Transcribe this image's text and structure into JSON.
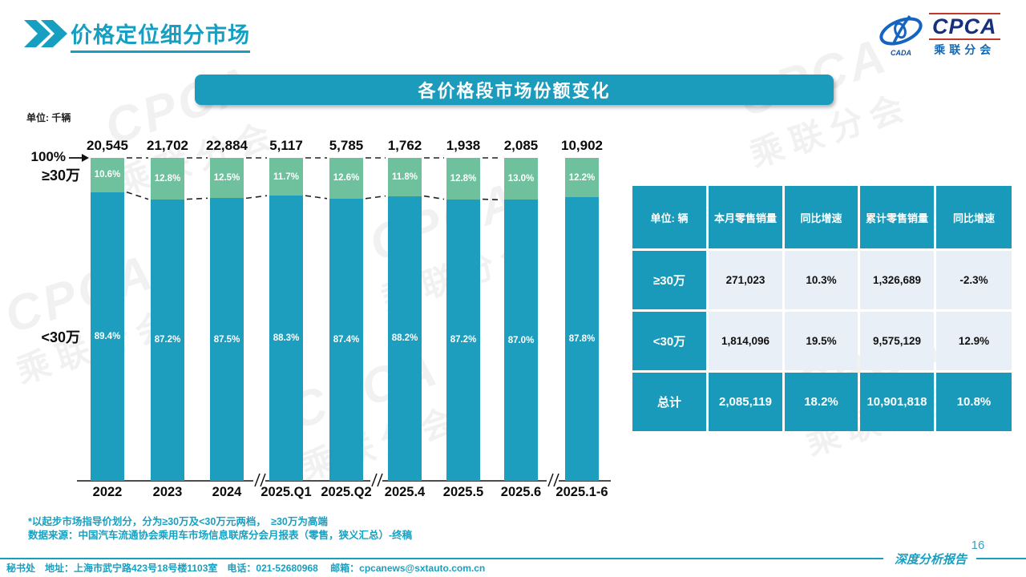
{
  "page": {
    "title": "价格定位细分市场",
    "page_number": "16",
    "report_label": "深度分析报告",
    "footer_contact": "秘书处　地址：上海市武宁路423号18号楼1103室　电话：021-52680968　 邮箱：cpcanews@sxtauto.com.cn",
    "note_line1": "*以起步市场指导价划分，分为≥30万及<30万元两档，　≥30万为高端",
    "note_line2": "数据来源：中国汽车流通协会乘用车市场信息联席分会月报表（零售，狭义汇总）-终稿"
  },
  "logo": {
    "text": "CPCA",
    "subtext": "乘联分会",
    "emblem_caption": "CADA"
  },
  "chart_banner": "各价格段市场份额变化",
  "chart_data": {
    "type": "bar",
    "stacked": true,
    "title": "各价格段市场份额变化",
    "unit_label": "单位: 千辆",
    "axis_top_label": "100%",
    "ylim": [
      0,
      100
    ],
    "grid": false,
    "legend_position": "left-axis",
    "categories": [
      "2022",
      "2023",
      "2024",
      "2025.Q1",
      "2025.Q2",
      "2025.4",
      "2025.5",
      "2025.6",
      "2025.1-6"
    ],
    "totals_thousand_units": [
      "20,545",
      "21,702",
      "22,884",
      "5,117",
      "5,785",
      "1,762",
      "1,938",
      "2,085",
      "10,902"
    ],
    "series": [
      {
        "name": "≥30万",
        "color": "#6fc09c",
        "values": [
          10.6,
          12.8,
          12.5,
          11.7,
          12.6,
          11.8,
          12.8,
          13.0,
          12.2
        ]
      },
      {
        "name": "<30万",
        "color": "#1e9ebe",
        "values": [
          89.4,
          87.2,
          87.5,
          88.3,
          87.4,
          88.2,
          87.2,
          87.0,
          87.8
        ]
      }
    ],
    "axis_break_after_categories": [
      "2024",
      "2025.Q2",
      "2025.6"
    ]
  },
  "table": {
    "headers": [
      "单位: 辆",
      "本月零售销量",
      "同比增速",
      "累计零售销量",
      "同比增速"
    ],
    "rows": [
      {
        "label": "≥30万",
        "cells": [
          "271,023",
          "10.3%",
          "1,326,689",
          "-2.3%"
        ],
        "total": false
      },
      {
        "label": "<30万",
        "cells": [
          "1,814,096",
          "19.5%",
          "9,575,129",
          "12.9%"
        ],
        "total": false
      },
      {
        "label": "总计",
        "cells": [
          "2,085,119",
          "18.2%",
          "10,901,818",
          "10.8%"
        ],
        "total": true
      }
    ]
  },
  "colors": {
    "accent": "#179FC2",
    "bar_teal": "#1E9EBE",
    "bar_green": "#6FC09C",
    "banner_teal": "#1B9CBD",
    "table_teal": "#1A9ABA",
    "table_row_bg": "#E9EFF7",
    "dash_line": "#222222"
  }
}
